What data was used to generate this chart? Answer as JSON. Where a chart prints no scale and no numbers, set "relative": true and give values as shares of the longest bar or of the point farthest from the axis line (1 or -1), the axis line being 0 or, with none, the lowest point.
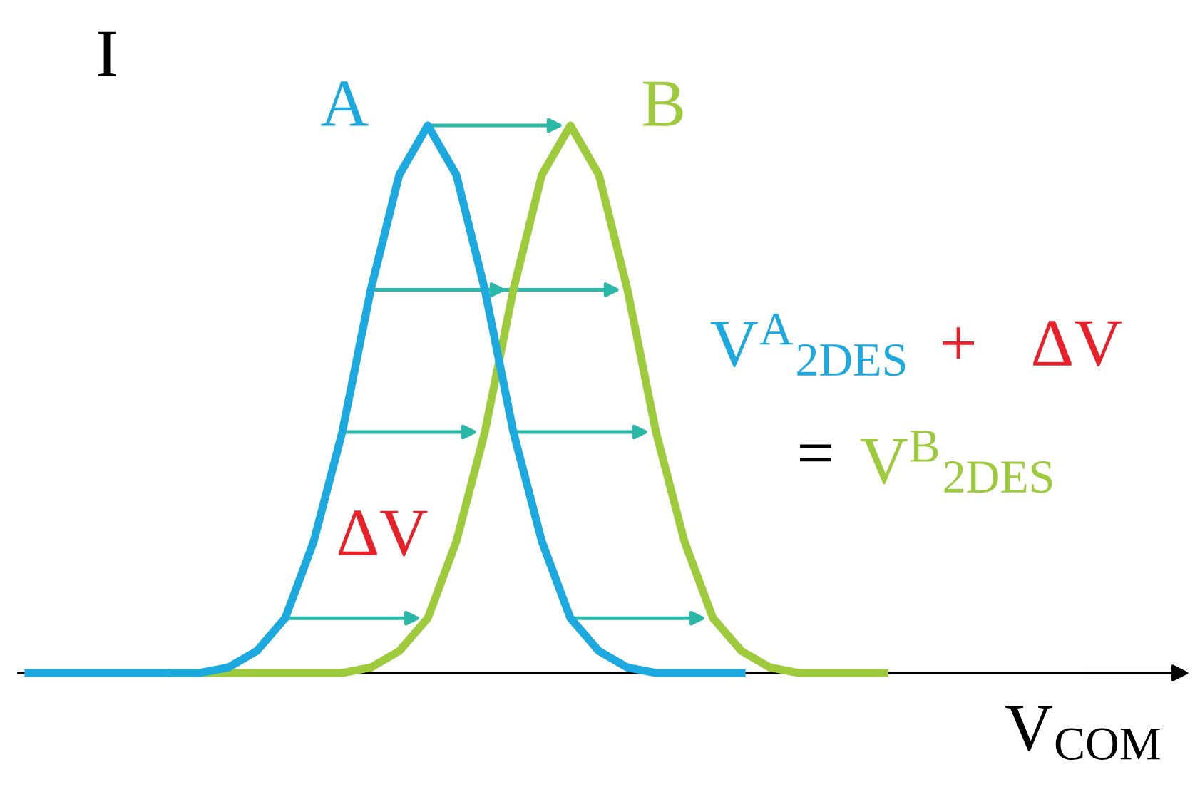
{
  "chart_data": {
    "type": "line",
    "relative": true,
    "xlabel": "V$_{COM}$",
    "ylabel": "I",
    "categories": [
      null,
      null,
      null,
      null,
      null,
      null,
      null,
      null,
      null,
      null,
      null,
      null,
      null,
      null,
      null,
      null,
      null,
      null,
      null,
      null,
      null,
      null,
      null,
      null,
      null,
      null,
      null,
      null,
      null,
      null,
      null
    ],
    "series": [
      {
        "name": "A",
        "color": "#1ba9e0",
        "values": [
          0,
          0,
          0,
          0,
          0,
          0,
          0,
          0.01,
          0.04,
          0.1,
          0.24,
          0.44,
          0.7,
          0.91,
          1,
          0.91,
          0.7,
          0.44,
          0.24,
          0.1,
          0.04,
          0.01,
          0,
          0,
          0,
          0,
          null,
          null,
          null,
          null,
          null
        ]
      },
      {
        "name": "B",
        "color": "#9dcb3c",
        "values": [
          null,
          null,
          null,
          null,
          null,
          0,
          0,
          0,
          0,
          0,
          0,
          0,
          0.01,
          0.04,
          0.1,
          0.24,
          0.44,
          0.7,
          0.91,
          1,
          0.91,
          0.7,
          0.44,
          0.24,
          0.1,
          0.04,
          0.01,
          0,
          0,
          0,
          0
        ]
      }
    ],
    "annotations": [
      "ΔV",
      "V$^{A}$$_{2DES}$",
      "+",
      "ΔV",
      "=",
      "V$^{B}$$_{2DES}$"
    ],
    "legend": false,
    "marker": "none",
    "line_style": "solid"
  }
}
